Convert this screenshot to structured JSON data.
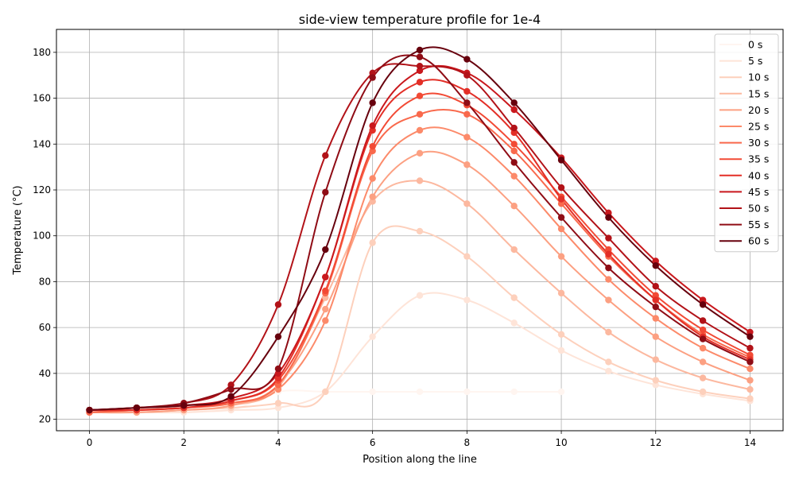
{
  "chart_data": {
    "type": "line",
    "title": "side-view temperature profile for 1e-4",
    "xlabel": "Position along the line",
    "ylabel": "Temperature (°C)",
    "xlim": [
      -0.7,
      14.7
    ],
    "ylim": [
      15,
      190
    ],
    "xticks": [
      0,
      2,
      4,
      6,
      8,
      10,
      12,
      14
    ],
    "yticks": [
      20,
      40,
      60,
      80,
      100,
      120,
      140,
      160,
      180
    ],
    "grid": true,
    "legend_position": "top-right",
    "x": [
      0,
      1,
      2,
      3,
      4,
      5,
      6,
      7,
      8,
      9,
      10,
      11,
      12,
      13,
      14
    ],
    "series": [
      {
        "name": "0 s",
        "color": "#fff5f0",
        "values": [
          24,
          24,
          24,
          24,
          32,
          32,
          32,
          32,
          32,
          32,
          32,
          null,
          null,
          null,
          null
        ]
      },
      {
        "name": "5 s",
        "color": "#fee4d8",
        "values": [
          23,
          23,
          23,
          24,
          25,
          32,
          56,
          74,
          72,
          62,
          50,
          41,
          35,
          31,
          28
        ]
      },
      {
        "name": "10 s",
        "color": "#fdd0bc",
        "values": [
          23,
          23,
          24,
          25,
          27,
          32,
          97,
          102,
          91,
          73,
          57,
          45,
          37,
          32,
          29
        ]
      },
      {
        "name": "15 s",
        "color": "#fcb89f",
        "values": [
          23,
          23,
          24,
          26,
          34,
          73,
          115,
          124,
          114,
          94,
          75,
          58,
          46,
          38,
          33
        ]
      },
      {
        "name": "20 s",
        "color": "#fca082",
        "values": [
          23,
          23,
          24,
          26,
          35,
          68,
          117,
          136,
          131,
          113,
          91,
          72,
          56,
          45,
          37
        ]
      },
      {
        "name": "25 s",
        "color": "#fc8a6a",
        "values": [
          23,
          24,
          25,
          27,
          33,
          63,
          125,
          146,
          143,
          126,
          103,
          81,
          64,
          51,
          42
        ]
      },
      {
        "name": "30 s",
        "color": "#f9694c",
        "values": [
          23,
          24,
          25,
          27,
          35,
          75,
          137,
          153,
          153,
          137,
          114,
          91,
          72,
          57,
          47
        ]
      },
      {
        "name": "35 s",
        "color": "#f24a35",
        "values": [
          24,
          24,
          25,
          28,
          37,
          76,
          139,
          161,
          157,
          140,
          117,
          94,
          74,
          59,
          48
        ]
      },
      {
        "name": "40 s",
        "color": "#e32f27",
        "values": [
          24,
          24,
          25,
          28,
          38,
          82,
          146,
          167,
          163,
          145,
          116,
          92,
          72,
          56,
          46
        ]
      },
      {
        "name": "45 s",
        "color": "#c9181d",
        "values": [
          24,
          25,
          26,
          29,
          40,
          82,
          148,
          172,
          171,
          155,
          134,
          110,
          89,
          72,
          58
        ]
      },
      {
        "name": "50 s",
        "color": "#b21218",
        "values": [
          24,
          25,
          27,
          35,
          70,
          135,
          171,
          174,
          170,
          147,
          121,
          99,
          78,
          63,
          51
        ]
      },
      {
        "name": "55 s",
        "color": "#8f0c15",
        "values": [
          24,
          25,
          27,
          33,
          42,
          119,
          169,
          178,
          158,
          132,
          108,
          86,
          69,
          55,
          45
        ]
      },
      {
        "name": "60 s",
        "color": "#67000d",
        "values": [
          24,
          25,
          26,
          30,
          56,
          94,
          158,
          181,
          177,
          158,
          133,
          108,
          87,
          70,
          56
        ]
      }
    ]
  }
}
